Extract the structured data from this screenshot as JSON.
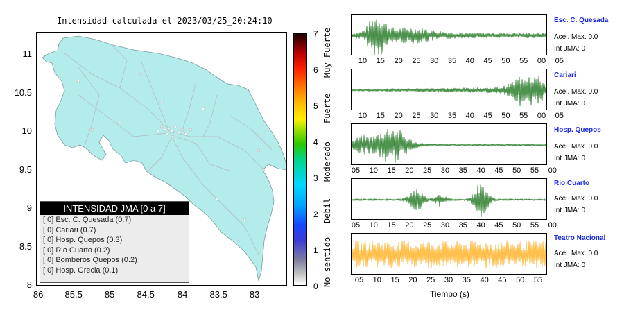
{
  "map": {
    "title": "Intensidad calculada el 2023/03/25_20:24:10",
    "y_ticks": [
      "11",
      "10.5",
      "10",
      "9.5",
      "9",
      "8.5",
      "8"
    ],
    "x_ticks": [
      "-86",
      "-85.5",
      "-85",
      "-84.5",
      "-84",
      "-83.5",
      "-83"
    ],
    "land_color": "#b4ecec",
    "legend": {
      "title": "INTENSIDAD JMA [0 a 7]",
      "items": [
        "[ 0]  Esc. C. Quesada (0.7)",
        "[ 0]  Cariari (0.7)",
        "[ 0]  Hosp. Quepos (0.3)",
        "[ 0]  Rio Cuarto (0.2)",
        "[ 0]  Bomberos Quepos (0.2)",
        "[ 0]  Hosp. Grecia (0.1)"
      ]
    }
  },
  "colorbar": {
    "ticks": [
      "7",
      "6",
      "5",
      "4",
      "3",
      "2",
      "1",
      "0"
    ],
    "labels": [
      "Muy Fuerte",
      "Fuerte",
      "Moderado",
      "Debil",
      "No sentido"
    ]
  },
  "waveforms": {
    "xlabel": "Tiempo (s)",
    "stations": [
      {
        "name": "Esc. C. Quesada",
        "accel": "Acel. Max. 0.0",
        "int": "Int JMA: 0",
        "color": "#006400",
        "ticks": [
          "10",
          "15",
          "20",
          "25",
          "30",
          "35",
          "40",
          "45",
          "50",
          "55",
          "00",
          "05"
        ]
      },
      {
        "name": "Cariari",
        "accel": "Acel. Max. 0.0",
        "int": "Int JMA: 0",
        "color": "#006400",
        "ticks": [
          "10",
          "15",
          "20",
          "25",
          "30",
          "35",
          "40",
          "45",
          "50",
          "55",
          "00",
          "05"
        ]
      },
      {
        "name": "Hosp. Quepos",
        "accel": "Acel. Max. 0.0",
        "int": "Int JMA: 0",
        "color": "#006400",
        "ticks": [
          "05",
          "10",
          "15",
          "20",
          "25",
          "30",
          "35",
          "40",
          "45",
          "50",
          "55",
          "00"
        ]
      },
      {
        "name": "Rio Cuarto",
        "accel": "Acel. Max. 0.0",
        "int": "Int JMA: 0",
        "color": "#006400",
        "ticks": [
          "05",
          "10",
          "15",
          "20",
          "25",
          "30",
          "35",
          "40",
          "45",
          "50",
          "55",
          "00"
        ]
      },
      {
        "name": "Teatro Nacional",
        "accel": "Acel. Max. 0.0",
        "int": "Int JMA: 0",
        "color": "#ffa500",
        "ticks": [
          "05",
          "10",
          "15",
          "20",
          "25",
          "30",
          "35",
          "40",
          "45",
          "50",
          "55"
        ]
      }
    ]
  }
}
